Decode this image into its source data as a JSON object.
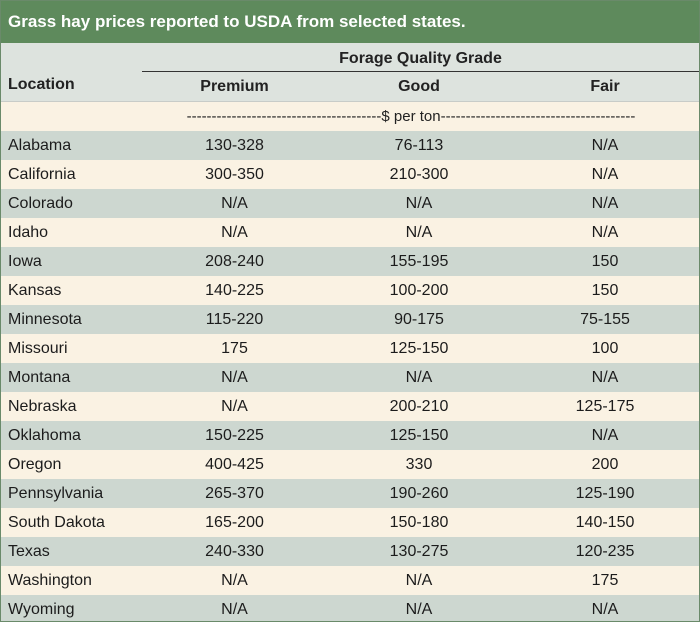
{
  "title": "Grass hay prices reported to USDA from selected states.",
  "header": {
    "group": "Forage Quality Grade",
    "location": "Location",
    "premium": "Premium",
    "good": "Good",
    "fair": "Fair"
  },
  "units": "---------------------------------------$ per ton---------------------------------------",
  "rows": [
    {
      "location": "Alabama",
      "premium": "130-328",
      "good": "76-113",
      "fair": "N/A"
    },
    {
      "location": "California",
      "premium": "300-350",
      "good": "210-300",
      "fair": "N/A"
    },
    {
      "location": "Colorado",
      "premium": "N/A",
      "good": "N/A",
      "fair": "N/A"
    },
    {
      "location": "Idaho",
      "premium": "N/A",
      "good": "N/A",
      "fair": "N/A"
    },
    {
      "location": "Iowa",
      "premium": "208-240",
      "good": "155-195",
      "fair": "150"
    },
    {
      "location": "Kansas",
      "premium": "140-225",
      "good": "100-200",
      "fair": "150"
    },
    {
      "location": "Minnesota",
      "premium": "115-220",
      "good": "90-175",
      "fair": "75-155"
    },
    {
      "location": "Missouri",
      "premium": "175",
      "good": "125-150",
      "fair": "100"
    },
    {
      "location": "Montana",
      "premium": "N/A",
      "good": "N/A",
      "fair": "N/A"
    },
    {
      "location": "Nebraska",
      "premium": "N/A",
      "good": "200-210",
      "fair": "125-175"
    },
    {
      "location": "Oklahoma",
      "premium": "150-225",
      "good": "125-150",
      "fair": "N/A"
    },
    {
      "location": "Oregon",
      "premium": "400-425",
      "good": "330",
      "fair": "200"
    },
    {
      "location": "Pennsylvania",
      "premium": "265-370",
      "good": "190-260",
      "fair": "125-190"
    },
    {
      "location": "South Dakota",
      "premium": "165-200",
      "good": "150-180",
      "fair": "140-150"
    },
    {
      "location": "Texas",
      "premium": "240-330",
      "good": "130-275",
      "fair": "120-235"
    },
    {
      "location": "Washington",
      "premium": "N/A",
      "good": "N/A",
      "fair": "175"
    },
    {
      "location": "Wyoming",
      "premium": "N/A",
      "good": "N/A",
      "fair": "N/A"
    }
  ],
  "colors": {
    "title_bg": "#5e8a5c",
    "header_bg": "#dde3de",
    "row_shaded": "#cdd7d0",
    "row_plain": "#faf2e3"
  }
}
